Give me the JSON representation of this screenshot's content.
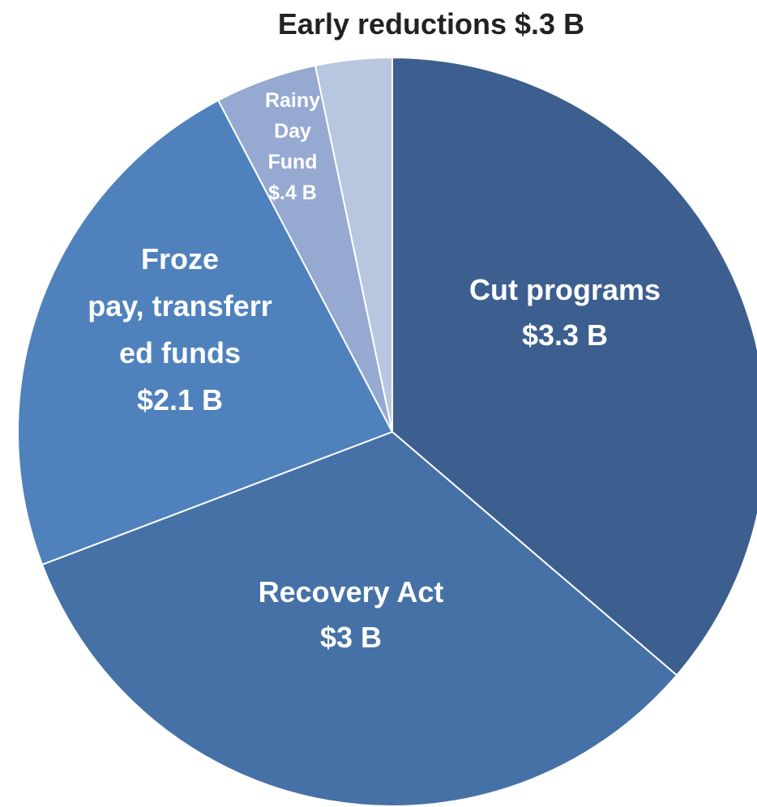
{
  "chart_data": {
    "type": "pie",
    "title": "",
    "units": "$ billions",
    "slices": [
      {
        "label_lines": [
          "Cut programs",
          "$3.3 B"
        ],
        "value": 3.3,
        "color": "#3d5f8f",
        "label_color": "#ffffff"
      },
      {
        "label_lines": [
          "Recovery Act",
          "$3 B"
        ],
        "value": 3.0,
        "color": "#4571a6",
        "label_color": "#ffffff"
      },
      {
        "label_lines": [
          "Froze",
          "pay, transferr",
          "ed funds",
          "$2.1 B"
        ],
        "value": 2.1,
        "color": "#4f81bd",
        "label_color": "#ffffff"
      },
      {
        "label_lines": [
          "Rainy",
          "Day",
          "Fund",
          "$.4 B"
        ],
        "value": 0.4,
        "color": "#95a9d1",
        "label_color": "#ffffff"
      },
      {
        "label_lines": [
          "Early reductions  $.3 B"
        ],
        "value": 0.3,
        "color": "#b9c6e0",
        "label_color": "#222222"
      }
    ]
  }
}
